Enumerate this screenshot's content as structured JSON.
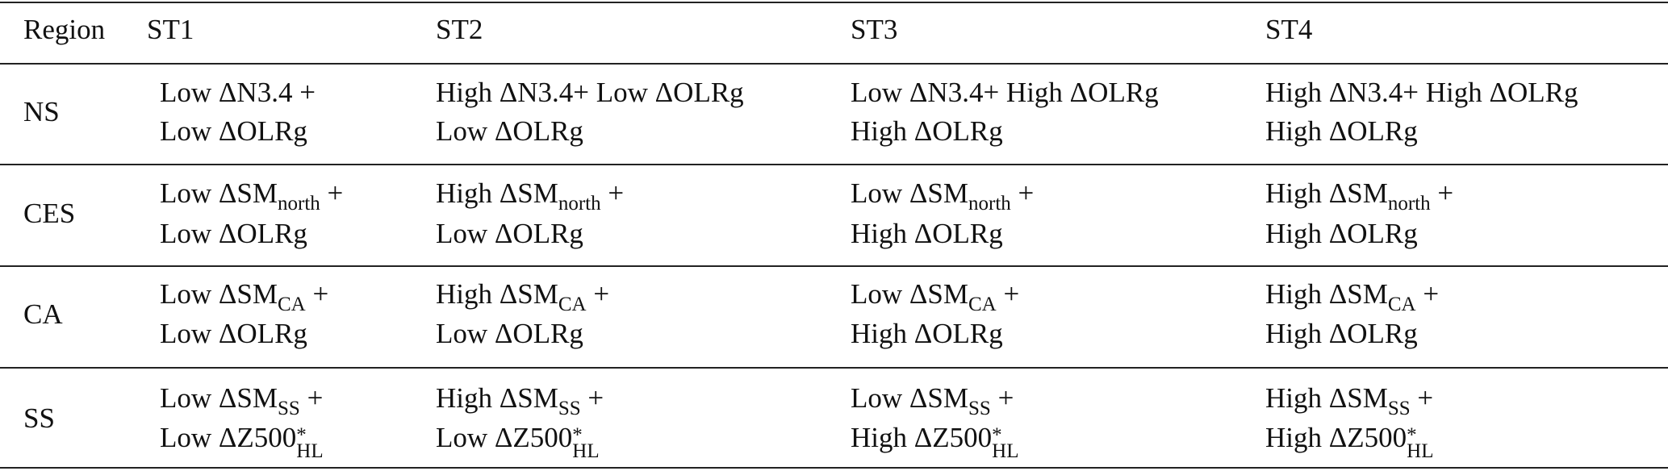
{
  "table": {
    "header": [
      "Region",
      "ST1",
      "ST2",
      "ST3",
      "ST4"
    ],
    "rows": [
      {
        "region": "NS",
        "cells": [
          [
            [
              {
                "t": "Low ΔN3.4 +"
              }
            ],
            [
              {
                "t": "Low ΔOLRg"
              }
            ]
          ],
          [
            [
              {
                "t": "High ΔN3.4+ Low ΔOLRg"
              }
            ],
            [
              {
                "t": "Low ΔOLRg"
              }
            ]
          ],
          [
            [
              {
                "t": "Low ΔN3.4+ High ΔOLRg"
              }
            ],
            [
              {
                "t": "High ΔOLRg"
              }
            ]
          ],
          [
            [
              {
                "t": "High ΔN3.4+ High ΔOLRg"
              }
            ],
            [
              {
                "t": "High ΔOLRg"
              }
            ]
          ]
        ]
      },
      {
        "region": "CES",
        "cells": [
          [
            [
              {
                "t": "Low ΔSM"
              },
              {
                "sub": "north"
              },
              {
                "t": " +"
              }
            ],
            [
              {
                "t": "Low ΔOLRg"
              }
            ]
          ],
          [
            [
              {
                "t": "High ΔSM"
              },
              {
                "sub": "north"
              },
              {
                "t": " +"
              }
            ],
            [
              {
                "t": "Low ΔOLRg"
              }
            ]
          ],
          [
            [
              {
                "t": "Low ΔSM"
              },
              {
                "sub": "north"
              },
              {
                "t": " +"
              }
            ],
            [
              {
                "t": "High ΔOLRg"
              }
            ]
          ],
          [
            [
              {
                "t": "High ΔSM"
              },
              {
                "sub": "north"
              },
              {
                "t": " +"
              }
            ],
            [
              {
                "t": "High ΔOLRg"
              }
            ]
          ]
        ]
      },
      {
        "region": "CA",
        "cells": [
          [
            [
              {
                "t": "Low ΔSM"
              },
              {
                "sub": "CA"
              },
              {
                "t": " +"
              }
            ],
            [
              {
                "t": "Low ΔOLRg"
              }
            ]
          ],
          [
            [
              {
                "t": "High ΔSM"
              },
              {
                "sub": "CA"
              },
              {
                "t": " +"
              }
            ],
            [
              {
                "t": "Low ΔOLRg"
              }
            ]
          ],
          [
            [
              {
                "t": "Low ΔSM"
              },
              {
                "sub": "CA"
              },
              {
                "t": " +"
              }
            ],
            [
              {
                "t": "High ΔOLRg"
              }
            ]
          ],
          [
            [
              {
                "t": "High ΔSM"
              },
              {
                "sub": "CA"
              },
              {
                "t": " +"
              }
            ],
            [
              {
                "t": "High ΔOLRg"
              }
            ]
          ]
        ]
      },
      {
        "region": "SS",
        "cells": [
          [
            [
              {
                "t": "Low ΔSM"
              },
              {
                "sub": "SS"
              },
              {
                "t": " +"
              }
            ],
            [
              {
                "t": "Low ΔZ500"
              },
              {
                "sup": "*",
                "sub": "HL"
              }
            ]
          ],
          [
            [
              {
                "t": "High ΔSM"
              },
              {
                "sub": "SS"
              },
              {
                "t": " +"
              }
            ],
            [
              {
                "t": "Low ΔZ500"
              },
              {
                "sup": "*",
                "sub": "HL"
              }
            ]
          ],
          [
            [
              {
                "t": "Low ΔSM"
              },
              {
                "sub": "SS"
              },
              {
                "t": " +"
              }
            ],
            [
              {
                "t": "High ΔZ500"
              },
              {
                "sup": "*",
                "sub": "HL"
              }
            ]
          ],
          [
            [
              {
                "t": "High ΔSM"
              },
              {
                "sub": "SS"
              },
              {
                "t": " +"
              }
            ],
            [
              {
                "t": "High ΔZ500"
              },
              {
                "sup": "*",
                "sub": "HL"
              }
            ]
          ]
        ]
      }
    ]
  }
}
